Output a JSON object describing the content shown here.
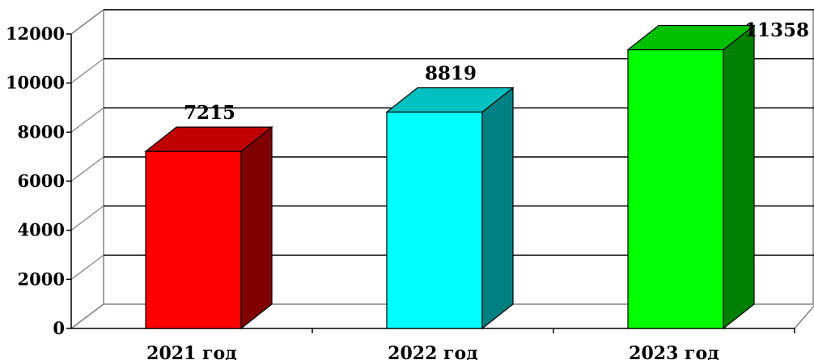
{
  "chart_data": {
    "type": "bar",
    "style": "3d-column",
    "categories": [
      "2021 год",
      "2022 год",
      "2023 год"
    ],
    "values": [
      7215,
      8819,
      11358
    ],
    "data_labels": [
      "7215",
      "8819",
      "11358"
    ],
    "colors": {
      "front": [
        "#ff0000",
        "#00ffff",
        "#00ff00"
      ],
      "side": [
        "#800000",
        "#008080",
        "#008000"
      ],
      "top": [
        "#c00000",
        "#00c0c0",
        "#00c000"
      ]
    },
    "y_ticks": [
      "0",
      "2000",
      "4000",
      "6000",
      "8000",
      "10000",
      "12000"
    ],
    "ylim": [
      0,
      12000
    ],
    "grid": true,
    "legend": "none",
    "title": "",
    "xlabel": "",
    "ylabel": ""
  }
}
